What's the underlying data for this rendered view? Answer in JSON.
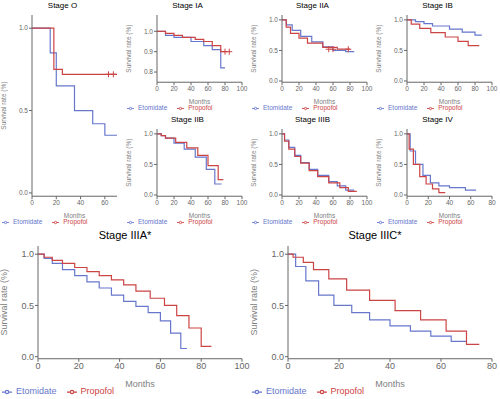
{
  "chart_data": [
    {
      "type": "step",
      "title": "Stage O",
      "x_label": "Months",
      "y_label": "Survival rate (%)",
      "legend": "lower left",
      "xlim": [
        0,
        70
      ],
      "ylim": [
        -0.02,
        1.08
      ],
      "xticks": [
        0,
        20,
        40,
        60
      ],
      "yticks": [
        {
          "value": 0,
          "label": "0.0"
        },
        0.5,
        {
          "value": 1,
          "label": "1.0"
        }
      ],
      "series": [
        {
          "name": "Etomidate",
          "color": "#6677CC",
          "marker": "+",
          "x": [
            0,
            15,
            15,
            20,
            20,
            35,
            35,
            50,
            50,
            60,
            60,
            70
          ],
          "values": [
            1.0,
            1.0,
            0.85,
            0.85,
            0.65,
            0.65,
            0.5,
            0.5,
            0.42,
            0.42,
            0.35,
            0.35
          ]
        },
        {
          "name": "Propofol",
          "color": "#CC4444",
          "marker": "+",
          "x": [
            0,
            18,
            18,
            25,
            25,
            70
          ],
          "values": [
            1.0,
            1.0,
            0.75,
            0.75,
            0.72,
            0.72
          ],
          "censor_x": [
            63,
            67
          ],
          "censor_values": [
            0.72,
            0.72
          ]
        }
      ]
    },
    {
      "type": "step",
      "title": "Stage IA",
      "x_label": "Months",
      "y_label": "Survival rate (%)",
      "legend": "lower left",
      "xlim": [
        0,
        100
      ],
      "ylim": [
        0.75,
        1.08
      ],
      "xticks": [
        0,
        20,
        40,
        60,
        80,
        100
      ],
      "yticks": [
        0.8,
        0.9,
        {
          "value": 1,
          "label": "1.0"
        }
      ],
      "series": [
        {
          "name": "Etomidate",
          "color": "#6677CC",
          "marker": "+",
          "x": [
            0,
            10,
            10,
            20,
            20,
            40,
            40,
            55,
            55,
            65,
            65,
            75,
            75,
            80
          ],
          "values": [
            1.0,
            1.0,
            0.98,
            0.98,
            0.97,
            0.97,
            0.95,
            0.95,
            0.93,
            0.93,
            0.91,
            0.91,
            0.82,
            0.82
          ]
        },
        {
          "name": "Propofol",
          "color": "#CC4444",
          "marker": "+",
          "x": [
            0,
            10,
            10,
            20,
            20,
            30,
            30,
            45,
            45,
            55,
            55,
            65,
            65,
            75,
            75,
            82
          ],
          "values": [
            1.0,
            1.0,
            0.99,
            0.99,
            0.98,
            0.98,
            0.97,
            0.97,
            0.96,
            0.96,
            0.95,
            0.95,
            0.93,
            0.93,
            0.9,
            0.9
          ],
          "censor_x": [
            80,
            85
          ],
          "censor_values": [
            0.9,
            0.9
          ]
        }
      ]
    },
    {
      "type": "step",
      "title": "Stage IIA",
      "x_label": "Months",
      "y_label": "Survival rate (%)",
      "legend": "lower left",
      "xlim": [
        0,
        100
      ],
      "ylim": [
        -0.02,
        1.08
      ],
      "xticks": [
        0,
        20,
        40,
        60,
        80,
        100
      ],
      "yticks": [
        {
          "value": 0,
          "label": "0.0"
        },
        0.5,
        {
          "value": 1,
          "label": "1.0"
        }
      ],
      "series": [
        {
          "name": "Etomidate",
          "color": "#6677CC",
          "marker": "+",
          "x": [
            0,
            5,
            5,
            12,
            12,
            22,
            22,
            35,
            35,
            48,
            48,
            60,
            60,
            75,
            75,
            85
          ],
          "values": [
            1.0,
            1.0,
            0.92,
            0.92,
            0.83,
            0.83,
            0.73,
            0.73,
            0.64,
            0.64,
            0.56,
            0.56,
            0.5,
            0.5,
            0.48,
            0.48
          ]
        },
        {
          "name": "Propofol",
          "color": "#CC4444",
          "marker": "+",
          "x": [
            0,
            5,
            5,
            10,
            10,
            20,
            20,
            30,
            30,
            48,
            48,
            65,
            65,
            80
          ],
          "values": [
            1.0,
            1.0,
            0.88,
            0.88,
            0.78,
            0.78,
            0.7,
            0.7,
            0.62,
            0.62,
            0.55,
            0.55,
            0.52,
            0.52
          ],
          "censor_x": [
            55,
            60,
            78
          ],
          "censor_values": [
            0.52,
            0.52,
            0.52
          ]
        }
      ]
    },
    {
      "type": "step",
      "title": "Stage IB",
      "x_label": "Months",
      "y_label": "Survival rate (%)",
      "legend": "lower left",
      "xlim": [
        0,
        100
      ],
      "ylim": [
        -0.02,
        1.08
      ],
      "xticks": [
        0,
        20,
        40,
        60,
        80,
        100
      ],
      "yticks": [
        {
          "value": 0,
          "label": "0.0"
        },
        0.5,
        {
          "value": 1,
          "label": "1.0"
        }
      ],
      "series": [
        {
          "name": "Etomidate",
          "color": "#6677CC",
          "marker": "+",
          "x": [
            0,
            10,
            10,
            20,
            20,
            30,
            30,
            50,
            50,
            65,
            65,
            80,
            80,
            88
          ],
          "values": [
            1.0,
            1.0,
            0.97,
            0.97,
            0.94,
            0.94,
            0.9,
            0.9,
            0.85,
            0.85,
            0.8,
            0.8,
            0.75,
            0.75
          ]
        },
        {
          "name": "Propofol",
          "color": "#CC4444",
          "marker": "+",
          "x": [
            0,
            5,
            5,
            15,
            15,
            28,
            28,
            45,
            45,
            60,
            60,
            72,
            72,
            85
          ],
          "values": [
            1.0,
            1.0,
            0.93,
            0.93,
            0.86,
            0.86,
            0.79,
            0.79,
            0.72,
            0.72,
            0.65,
            0.65,
            0.58,
            0.58
          ]
        }
      ]
    },
    {
      "type": "step",
      "title": "Stage IIB",
      "x_label": "Months",
      "y_label": "Survival rate (%)",
      "legend": "lower left",
      "xlim": [
        0,
        100
      ],
      "ylim": [
        -0.02,
        1.08
      ],
      "xticks": [
        0,
        20,
        40,
        60,
        80,
        100
      ],
      "yticks": [
        {
          "value": 0,
          "label": "0.0"
        },
        0.5,
        {
          "value": 1,
          "label": "1.0"
        }
      ],
      "series": [
        {
          "name": "Etomidate",
          "color": "#6677CC",
          "marker": "+",
          "x": [
            0,
            5,
            5,
            10,
            10,
            20,
            20,
            32,
            32,
            45,
            45,
            58,
            58,
            68,
            68,
            76
          ],
          "values": [
            1.0,
            1.0,
            0.97,
            0.97,
            0.93,
            0.93,
            0.85,
            0.85,
            0.75,
            0.75,
            0.62,
            0.62,
            0.42,
            0.42,
            0.18,
            0.18
          ]
        },
        {
          "name": "Propofol",
          "color": "#CC4444",
          "marker": "+",
          "x": [
            0,
            5,
            5,
            10,
            10,
            22,
            22,
            35,
            35,
            48,
            48,
            60,
            60,
            72,
            72,
            78
          ],
          "values": [
            1.0,
            1.0,
            0.97,
            0.97,
            0.93,
            0.93,
            0.86,
            0.86,
            0.77,
            0.77,
            0.65,
            0.65,
            0.48,
            0.48,
            0.25,
            0.25
          ]
        }
      ]
    },
    {
      "type": "step",
      "title": "Stage IIIB",
      "x_label": "Months",
      "y_label": "Survival rate (%)",
      "legend": "lower left",
      "xlim": [
        0,
        100
      ],
      "ylim": [
        -0.02,
        1.08
      ],
      "xticks": [
        0,
        20,
        40,
        60,
        80,
        100
      ],
      "yticks": [
        {
          "value": 0,
          "label": "0.0"
        },
        0.5,
        {
          "value": 1,
          "label": "1.0"
        }
      ],
      "series": [
        {
          "name": "Etomidate",
          "color": "#6677CC",
          "marker": "+",
          "x": [
            0,
            3,
            3,
            8,
            8,
            15,
            15,
            22,
            22,
            32,
            32,
            42,
            42,
            55,
            55,
            65,
            65,
            75,
            75,
            85
          ],
          "values": [
            1.0,
            1.0,
            0.9,
            0.9,
            0.78,
            0.78,
            0.65,
            0.65,
            0.53,
            0.53,
            0.42,
            0.42,
            0.32,
            0.32,
            0.22,
            0.22,
            0.15,
            0.15,
            0.08,
            0.08
          ]
        },
        {
          "name": "Propofol",
          "color": "#CC4444",
          "marker": "+",
          "x": [
            0,
            3,
            3,
            8,
            8,
            15,
            15,
            22,
            22,
            32,
            32,
            42,
            42,
            55,
            55,
            68,
            68,
            78,
            78,
            88
          ],
          "values": [
            1.0,
            1.0,
            0.88,
            0.88,
            0.75,
            0.75,
            0.63,
            0.63,
            0.52,
            0.52,
            0.4,
            0.4,
            0.3,
            0.3,
            0.2,
            0.2,
            0.12,
            0.12,
            0.06,
            0.06
          ]
        }
      ]
    },
    {
      "type": "step",
      "title": "Stage IV",
      "x_label": "Months",
      "y_label": "Survival rate (%)",
      "legend": "lower left",
      "xlim": [
        0,
        80
      ],
      "ylim": [
        -0.02,
        1.08
      ],
      "xticks": [
        0,
        20,
        40,
        60,
        80
      ],
      "yticks": [
        {
          "value": 0,
          "label": "0.0"
        },
        0.5,
        {
          "value": 1,
          "label": "1.0"
        }
      ],
      "series": [
        {
          "name": "Etomidate",
          "color": "#6677CC",
          "marker": "+",
          "x": [
            0,
            3,
            3,
            8,
            8,
            15,
            15,
            22,
            22,
            30,
            30,
            40,
            40,
            55,
            55,
            65
          ],
          "values": [
            1.0,
            1.0,
            0.72,
            0.72,
            0.5,
            0.5,
            0.32,
            0.32,
            0.2,
            0.2,
            0.15,
            0.15,
            0.12,
            0.12,
            0.08,
            0.08
          ]
        },
        {
          "name": "Propofol",
          "color": "#CC4444",
          "marker": "+",
          "x": [
            0,
            2,
            2,
            6,
            6,
            12,
            12,
            18,
            18,
            24,
            24,
            30,
            30,
            36
          ],
          "values": [
            1.0,
            1.0,
            0.75,
            0.75,
            0.5,
            0.5,
            0.3,
            0.3,
            0.18,
            0.18,
            0.1,
            0.1,
            0.04,
            0.04
          ]
        }
      ]
    },
    {
      "type": "step",
      "title": "Stage IIIA*",
      "x_label": "Months",
      "y_label": "Survival rate (%)",
      "legend": "lower left",
      "xlim": [
        0,
        100
      ],
      "ylim": [
        -0.02,
        1.08
      ],
      "xticks": [
        0,
        20,
        40,
        60,
        80,
        100
      ],
      "yticks": [
        {
          "value": 0,
          "label": "0.0"
        },
        0.5,
        {
          "value": 1,
          "label": "1.0"
        }
      ],
      "series": [
        {
          "name": "Etomidate",
          "color": "#6677CC",
          "marker": "+",
          "x": [
            0,
            3,
            3,
            7,
            7,
            12,
            12,
            18,
            18,
            24,
            24,
            30,
            30,
            36,
            36,
            42,
            42,
            48,
            48,
            54,
            54,
            60,
            60,
            65,
            65,
            70,
            70,
            73
          ],
          "values": [
            1.0,
            1.0,
            0.96,
            0.96,
            0.91,
            0.91,
            0.85,
            0.85,
            0.79,
            0.79,
            0.73,
            0.73,
            0.67,
            0.67,
            0.6,
            0.6,
            0.54,
            0.54,
            0.49,
            0.49,
            0.43,
            0.43,
            0.35,
            0.35,
            0.23,
            0.23,
            0.08,
            0.08
          ]
        },
        {
          "name": "Propofol",
          "color": "#CC4444",
          "marker": "+",
          "x": [
            0,
            3,
            3,
            7,
            7,
            12,
            12,
            18,
            18,
            24,
            24,
            30,
            30,
            36,
            36,
            42,
            42,
            48,
            48,
            55,
            55,
            62,
            62,
            68,
            68,
            74,
            74,
            80,
            80,
            85
          ],
          "values": [
            1.0,
            1.0,
            0.97,
            0.97,
            0.94,
            0.94,
            0.91,
            0.91,
            0.87,
            0.87,
            0.83,
            0.83,
            0.79,
            0.79,
            0.75,
            0.75,
            0.7,
            0.7,
            0.64,
            0.64,
            0.57,
            0.57,
            0.5,
            0.5,
            0.4,
            0.4,
            0.28,
            0.28,
            0.1,
            0.1
          ]
        }
      ]
    },
    {
      "type": "step",
      "title": "Stage IIIC*",
      "x_label": "Months",
      "y_label": "Survival rate (%)",
      "legend": "lower left",
      "xlim": [
        0,
        80
      ],
      "ylim": [
        -0.02,
        1.08
      ],
      "xticks": [
        0,
        20,
        40,
        60,
        80
      ],
      "yticks": [
        {
          "value": 0,
          "label": "0.0"
        },
        0.5,
        {
          "value": 1,
          "label": "1.0"
        }
      ],
      "series": [
        {
          "name": "Etomidate",
          "color": "#6677CC",
          "marker": "+",
          "x": [
            0,
            3,
            3,
            7,
            7,
            12,
            12,
            18,
            18,
            25,
            25,
            32,
            32,
            40,
            40,
            48,
            48,
            56,
            56,
            64,
            64,
            70
          ],
          "values": [
            1.0,
            1.0,
            0.88,
            0.88,
            0.74,
            0.74,
            0.6,
            0.6,
            0.5,
            0.5,
            0.43,
            0.43,
            0.36,
            0.36,
            0.3,
            0.3,
            0.25,
            0.25,
            0.2,
            0.2,
            0.15,
            0.15
          ]
        },
        {
          "name": "Propofol",
          "color": "#CC4444",
          "marker": "+",
          "x": [
            0,
            2,
            2,
            6,
            6,
            10,
            10,
            16,
            16,
            23,
            23,
            32,
            32,
            42,
            42,
            52,
            52,
            62,
            62,
            70,
            70,
            75
          ],
          "values": [
            1.0,
            1.0,
            0.97,
            0.97,
            0.92,
            0.92,
            0.85,
            0.85,
            0.76,
            0.76,
            0.65,
            0.65,
            0.55,
            0.55,
            0.45,
            0.45,
            0.36,
            0.36,
            0.25,
            0.25,
            0.12,
            0.12
          ]
        }
      ]
    }
  ]
}
